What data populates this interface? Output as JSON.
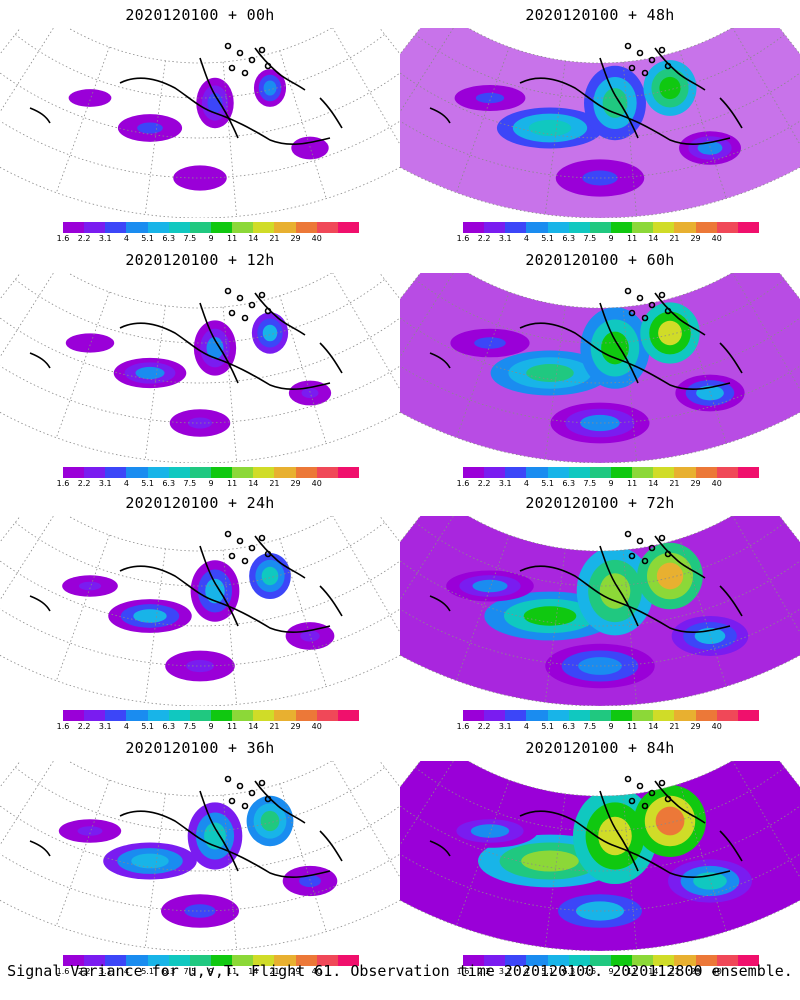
{
  "panels": [
    {
      "title": "2020120100 + 00h",
      "level": 0.05
    },
    {
      "title": "2020120100 + 48h",
      "level": 0.55
    },
    {
      "title": "2020120100 + 12h",
      "level": 0.15
    },
    {
      "title": "2020120100 + 60h",
      "level": 0.7
    },
    {
      "title": "2020120100 + 24h",
      "level": 0.28
    },
    {
      "title": "2020120100 + 72h",
      "level": 0.85
    },
    {
      "title": "2020120100 + 36h",
      "level": 0.4
    },
    {
      "title": "2020120100 + 84h",
      "level": 1.0
    }
  ],
  "colorbar": {
    "labels": [
      "1.6",
      "2.2",
      "3.1",
      "4",
      "5.1",
      "6.3",
      "7.5",
      "9",
      "11",
      "14",
      "21",
      "29",
      "40"
    ],
    "colors": [
      "#9a00d8",
      "#7a1cf0",
      "#3c46f8",
      "#1a8cf0",
      "#18b4e8",
      "#10c8c0",
      "#20c880",
      "#10c810",
      "#8cd838",
      "#d0dc28",
      "#e8b030",
      "#ec7838",
      "#f04858",
      "#f0106c"
    ]
  },
  "caption": "Signal Variance for u,v,T. Flight 61. Observation time 2020120100. 2020112800 ensemble."
}
